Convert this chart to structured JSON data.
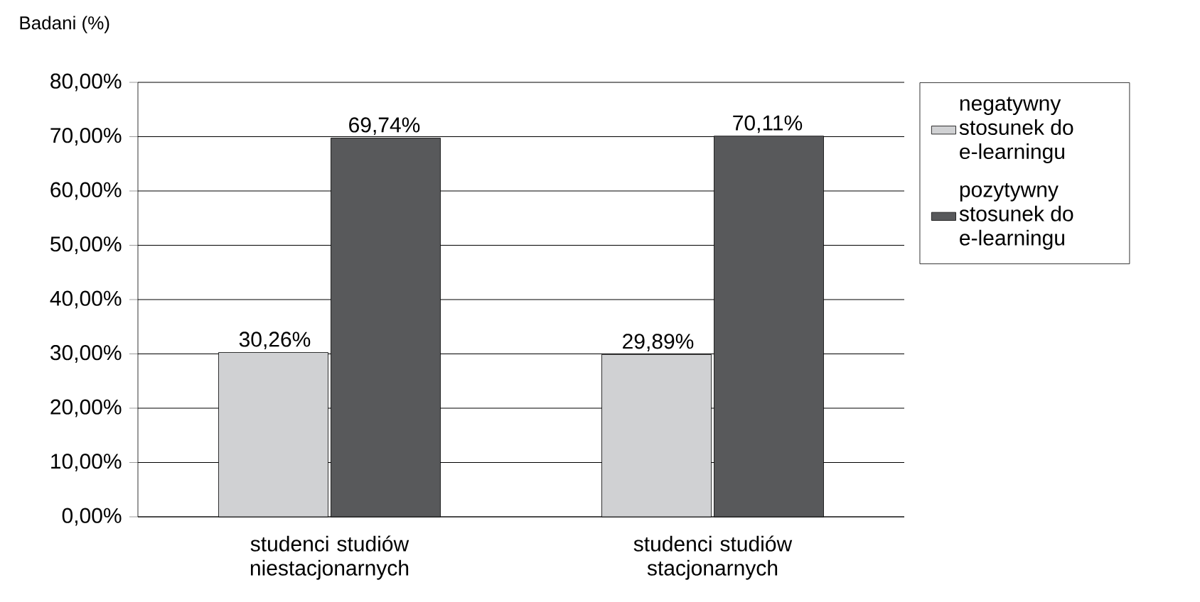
{
  "chart_data": {
    "type": "bar",
    "ylabel": "Badani (%)",
    "categories": [
      "studenci studiów niestacjonarnych",
      "studenci studiów stacjonarnych"
    ],
    "series": [
      {
        "name": "negatywny stosunek do e-learningu",
        "color": "#d0d1d3",
        "values": [
          30.26,
          29.89
        ],
        "value_labels": [
          "30,26%",
          "29,89%"
        ]
      },
      {
        "name": "pozytywny stosunek do e-learningu",
        "color": "#58595b",
        "values": [
          69.74,
          70.11
        ],
        "value_labels": [
          "69,74%",
          "70,11%"
        ]
      }
    ],
    "ylim": [
      0,
      80
    ],
    "yticks": [
      {
        "value": 0,
        "label": "0,00%"
      },
      {
        "value": 10,
        "label": "10,00%"
      },
      {
        "value": 20,
        "label": "20,00%"
      },
      {
        "value": 30,
        "label": "30,00%"
      },
      {
        "value": 40,
        "label": "40,00%"
      },
      {
        "value": 50,
        "label": "50,00%"
      },
      {
        "value": 60,
        "label": "60,00%"
      },
      {
        "value": 70,
        "label": "70,00%"
      },
      {
        "value": 80,
        "label": "80,00%"
      }
    ],
    "grid": "y",
    "legend": "right"
  }
}
